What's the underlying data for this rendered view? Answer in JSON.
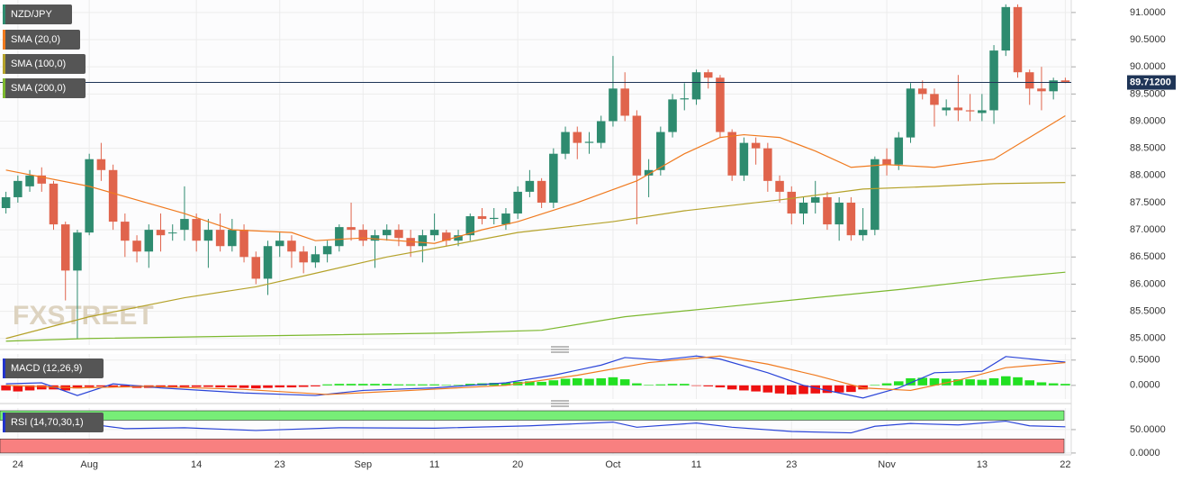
{
  "chart_data": [
    {
      "type": "candlestick",
      "categories": [
        null,
        "24",
        null,
        null,
        null,
        null,
        null,
        "Aug",
        null,
        null,
        null,
        null,
        null,
        null,
        null,
        null,
        "14",
        null,
        null,
        null,
        null,
        null,
        null,
        "23",
        null,
        null,
        null,
        null,
        null,
        null,
        "Sep",
        null,
        null,
        null,
        null,
        null,
        "11",
        null,
        null,
        null,
        null,
        null,
        null,
        "20",
        null,
        null,
        null,
        null,
        null,
        null,
        null,
        "Oct",
        null,
        null,
        null,
        null,
        null,
        null,
        "11",
        null,
        null,
        null,
        null,
        null,
        null,
        null,
        "23",
        null,
        null,
        null,
        null,
        null,
        null,
        null,
        "Nov",
        null,
        null,
        null,
        null,
        null,
        null,
        null,
        "13",
        null,
        null,
        null,
        null,
        null,
        null,
        "22"
      ],
      "series": [
        {
          "name": "NZD/JPY",
          "up_color": "#2e8b6f",
          "down_color": "#e0644c",
          "legend_color": "#2e8b6f",
          "open": [
            87.4,
            87.6,
            87.8,
            88.0,
            87.85,
            87.1,
            86.25,
            86.95,
            88.3,
            88.1,
            87.15,
            86.8,
            86.6,
            87.0,
            86.95,
            87.0,
            87.2,
            86.8,
            87.0,
            86.7,
            87.0,
            86.5,
            86.1,
            86.7,
            86.8,
            86.6,
            86.4,
            86.55,
            86.7,
            87.05,
            87.0,
            86.8,
            86.9,
            87.0,
            86.85,
            86.7,
            86.9,
            86.95,
            86.8,
            86.9,
            87.25,
            87.2,
            87.1,
            87.3,
            87.7,
            87.9,
            87.5,
            88.4,
            88.8,
            88.6,
            88.6,
            89.0,
            89.6,
            89.1,
            88.0,
            88.1,
            88.8,
            89.4,
            89.4,
            89.9,
            89.8,
            88.8,
            88.0,
            88.6,
            88.5,
            87.9,
            87.7,
            87.3,
            87.5,
            87.6,
            87.1,
            87.5,
            86.9,
            87.0,
            88.3,
            88.2,
            88.7,
            89.6,
            89.5,
            89.2,
            89.25,
            89.2,
            89.15,
            89.2,
            90.3,
            91.1,
            89.9,
            89.6,
            89.55,
            89.75
          ],
          "high": [
            87.7,
            88.0,
            88.1,
            88.15,
            87.9,
            87.15,
            87.0,
            88.4,
            88.6,
            88.2,
            87.3,
            86.9,
            87.1,
            87.3,
            87.1,
            87.8,
            87.3,
            87.2,
            87.3,
            87.2,
            87.1,
            86.6,
            86.8,
            86.95,
            86.9,
            86.7,
            86.7,
            86.8,
            87.1,
            87.5,
            87.1,
            87.0,
            87.1,
            87.1,
            87.0,
            87.0,
            87.3,
            87.0,
            87.0,
            87.3,
            87.4,
            87.4,
            87.4,
            87.8,
            88.1,
            87.95,
            88.5,
            88.9,
            88.9,
            88.8,
            89.1,
            90.2,
            89.9,
            89.2,
            88.3,
            88.9,
            89.5,
            89.7,
            89.95,
            89.95,
            89.85,
            88.85,
            88.7,
            88.7,
            88.6,
            88.0,
            87.8,
            87.6,
            87.9,
            87.7,
            87.6,
            87.6,
            87.4,
            88.35,
            88.5,
            88.8,
            89.7,
            89.75,
            89.6,
            89.4,
            89.85,
            89.5,
            89.5,
            90.4,
            91.15,
            91.15,
            89.95,
            90.0,
            89.8,
            89.8
          ],
          "low": [
            87.3,
            87.5,
            87.7,
            87.7,
            87.0,
            85.7,
            85.0,
            86.9,
            87.9,
            87.0,
            86.5,
            86.4,
            86.3,
            86.6,
            86.8,
            86.8,
            86.6,
            86.3,
            86.6,
            86.6,
            86.4,
            86.0,
            85.8,
            86.5,
            86.3,
            86.2,
            86.3,
            86.4,
            86.6,
            86.8,
            86.7,
            86.3,
            86.8,
            86.7,
            86.5,
            86.4,
            86.8,
            86.7,
            86.7,
            86.8,
            87.1,
            87.1,
            87.0,
            87.2,
            87.6,
            87.4,
            87.4,
            88.3,
            88.3,
            88.4,
            88.5,
            88.9,
            89.0,
            87.1,
            87.6,
            88.0,
            88.7,
            89.2,
            89.3,
            89.6,
            88.7,
            87.9,
            87.9,
            88.2,
            87.7,
            87.5,
            87.1,
            87.1,
            87.3,
            87.0,
            86.8,
            86.8,
            86.8,
            86.9,
            88.0,
            88.1,
            88.6,
            89.4,
            88.9,
            89.1,
            89.0,
            89.0,
            89.0,
            88.95,
            90.2,
            89.8,
            89.3,
            89.2,
            89.4,
            89.7
          ],
          "close": [
            87.6,
            87.9,
            88.0,
            87.85,
            87.1,
            86.25,
            86.95,
            88.3,
            88.1,
            87.15,
            86.8,
            86.6,
            87.0,
            86.9,
            86.95,
            87.2,
            86.8,
            87.0,
            86.7,
            87.0,
            86.5,
            86.1,
            86.7,
            86.8,
            86.6,
            86.4,
            86.55,
            86.7,
            87.05,
            87.0,
            86.8,
            86.9,
            87.0,
            86.85,
            86.7,
            86.9,
            87.0,
            86.8,
            86.9,
            87.25,
            87.2,
            87.22,
            87.3,
            87.7,
            87.9,
            87.5,
            88.4,
            88.8,
            88.6,
            88.62,
            89.0,
            89.6,
            89.1,
            88.0,
            88.1,
            88.8,
            89.4,
            89.42,
            89.9,
            89.8,
            88.8,
            88.0,
            88.6,
            88.5,
            87.9,
            87.7,
            87.3,
            87.5,
            87.6,
            87.1,
            87.5,
            86.9,
            87.0,
            88.3,
            88.2,
            88.7,
            89.6,
            89.5,
            89.3,
            89.25,
            89.2,
            89.18,
            89.2,
            90.3,
            91.1,
            89.9,
            89.6,
            89.55,
            89.75,
            89.712
          ]
        },
        {
          "name": "SMA (20,0)",
          "color": "#f07a1f",
          "x": [
            0,
            7,
            15,
            19,
            24,
            26,
            30,
            36,
            40,
            43,
            48,
            53,
            57,
            60,
            62,
            65,
            68,
            71,
            74,
            78,
            83,
            86,
            89
          ],
          "values": [
            88.1,
            87.8,
            87.3,
            87.0,
            86.95,
            86.8,
            86.85,
            86.75,
            87.0,
            87.15,
            87.5,
            87.9,
            88.4,
            88.7,
            88.75,
            88.7,
            88.45,
            88.15,
            88.2,
            88.15,
            88.3,
            88.7,
            89.1
          ]
        },
        {
          "name": "SMA (100,0)",
          "color": "#b5a22a",
          "x": [
            0,
            7,
            15,
            21,
            26,
            32,
            37,
            43,
            51,
            57,
            65,
            72,
            78,
            83,
            89
          ],
          "values": [
            85.0,
            85.4,
            85.75,
            85.95,
            86.2,
            86.5,
            86.7,
            86.95,
            87.15,
            87.35,
            87.55,
            87.75,
            87.8,
            87.85,
            87.87
          ]
        },
        {
          "name": "SMA (200,0)",
          "color": "#7cb82f",
          "x": [
            0,
            7,
            22,
            37,
            45,
            52,
            59,
            68,
            75,
            83,
            89
          ],
          "values": [
            84.95,
            85.0,
            85.05,
            85.1,
            85.15,
            85.4,
            85.55,
            85.75,
            85.9,
            86.1,
            86.22
          ]
        }
      ],
      "ylim": [
        84.88,
        91.23
      ],
      "yticks": [
        {
          "value": 85,
          "label": "85.0000"
        },
        {
          "value": 85.5,
          "label": "85.5000"
        },
        {
          "value": 86,
          "label": "86.0000"
        },
        {
          "value": 86.5,
          "label": "86.5000"
        },
        {
          "value": 87,
          "label": "87.0000"
        },
        {
          "value": 87.5,
          "label": "87.5000"
        },
        {
          "value": 88,
          "label": "88.0000"
        },
        {
          "value": 88.5,
          "label": "88.5000"
        },
        {
          "value": 89,
          "label": "89.0000"
        },
        {
          "value": 89.5,
          "label": "89.5000"
        },
        {
          "value": 90,
          "label": "90.0000"
        },
        {
          "value": 90.5,
          "label": "90.5000"
        },
        {
          "value": 91,
          "label": "91.0000"
        }
      ],
      "last_price": {
        "value": 89.712,
        "label": "89.71200"
      },
      "watermark": "FXSTREET",
      "grid": true
    },
    {
      "type": "macd",
      "name": "MACD (12,26,9)",
      "legend_color": "#2233cc",
      "ylim": [
        -0.27,
        0.62
      ],
      "yticks": [
        {
          "value": 0,
          "label": "0.0000"
        },
        {
          "value": 0.5,
          "label": "0.5000"
        }
      ],
      "histogram": {
        "positive_color": "#22e022",
        "negative_color": "#ee1111",
        "values": [
          -0.1,
          -0.12,
          -0.1,
          -0.08,
          -0.08,
          -0.1,
          -0.06,
          -0.03,
          -0.02,
          -0.03,
          -0.04,
          -0.05,
          -0.05,
          -0.04,
          -0.04,
          -0.03,
          -0.03,
          -0.03,
          -0.04,
          -0.04,
          -0.05,
          -0.06,
          -0.05,
          -0.04,
          -0.04,
          -0.03,
          -0.02,
          0.02,
          0.03,
          0.03,
          0.03,
          0.03,
          0.03,
          0.02,
          0.02,
          0.02,
          0.02,
          0.01,
          0.01,
          0.03,
          0.04,
          0.05,
          0.05,
          0.07,
          0.08,
          0.07,
          0.1,
          0.13,
          0.14,
          0.13,
          0.14,
          0.16,
          0.12,
          0.04,
          0.01,
          0.02,
          0.03,
          0.03,
          -0.01,
          -0.02,
          -0.04,
          -0.08,
          -0.1,
          -0.12,
          -0.14,
          -0.16,
          -0.18,
          -0.17,
          -0.16,
          -0.15,
          -0.14,
          -0.13,
          -0.08,
          0.01,
          0.04,
          0.08,
          0.14,
          0.15,
          0.14,
          0.13,
          0.12,
          0.12,
          0.11,
          0.14,
          0.18,
          0.16,
          0.1,
          0.06,
          0.04,
          0.03
        ]
      },
      "series": [
        {
          "color": "#2a44d8",
          "x": [
            0,
            3,
            6,
            9,
            13,
            20,
            26,
            30,
            36,
            42,
            46,
            50,
            52,
            55,
            58,
            60,
            64,
            67,
            70,
            72,
            75,
            78,
            82,
            84,
            87,
            89
          ],
          "values": [
            0.03,
            0.05,
            -0.2,
            0.03,
            -0.05,
            -0.15,
            -0.2,
            -0.1,
            -0.05,
            0.05,
            0.2,
            0.4,
            0.55,
            0.5,
            0.58,
            0.52,
            0.25,
            0.0,
            -0.15,
            -0.25,
            -0.05,
            0.25,
            0.28,
            0.57,
            0.5,
            0.46
          ]
        },
        {
          "color": "#f07a1f",
          "x": [
            0,
            6,
            12,
            20,
            27,
            34,
            42,
            48,
            54,
            60,
            64,
            68,
            72,
            76,
            80,
            84,
            89
          ],
          "values": [
            0.0,
            -0.05,
            -0.02,
            -0.08,
            -0.18,
            -0.1,
            0.0,
            0.2,
            0.45,
            0.58,
            0.42,
            0.2,
            -0.05,
            -0.1,
            0.1,
            0.35,
            0.45
          ]
        }
      ]
    },
    {
      "type": "rsi",
      "name": "RSI (14,70,30,1)",
      "legend_color": "#2233cc",
      "ylim": [
        -4,
        96
      ],
      "yticks": [
        {
          "value": 0,
          "label": "0.0000"
        },
        {
          "value": 50,
          "label": "50.0000"
        }
      ],
      "overbought": 70,
      "oversold": 30,
      "overbought_color": "#77ee77",
      "oversold_color": "#f88080",
      "series": [
        {
          "color": "#2a44d8",
          "x": [
            0,
            3,
            5,
            7,
            10,
            15,
            21,
            28,
            36,
            44,
            51,
            53,
            58,
            61,
            66,
            71,
            73,
            76,
            80,
            84,
            86,
            89
          ],
          "values": [
            55,
            58,
            45,
            62,
            52,
            54,
            48,
            54,
            53,
            58,
            66,
            55,
            64,
            55,
            46,
            43,
            57,
            63,
            60,
            68,
            58,
            56
          ]
        }
      ]
    }
  ]
}
